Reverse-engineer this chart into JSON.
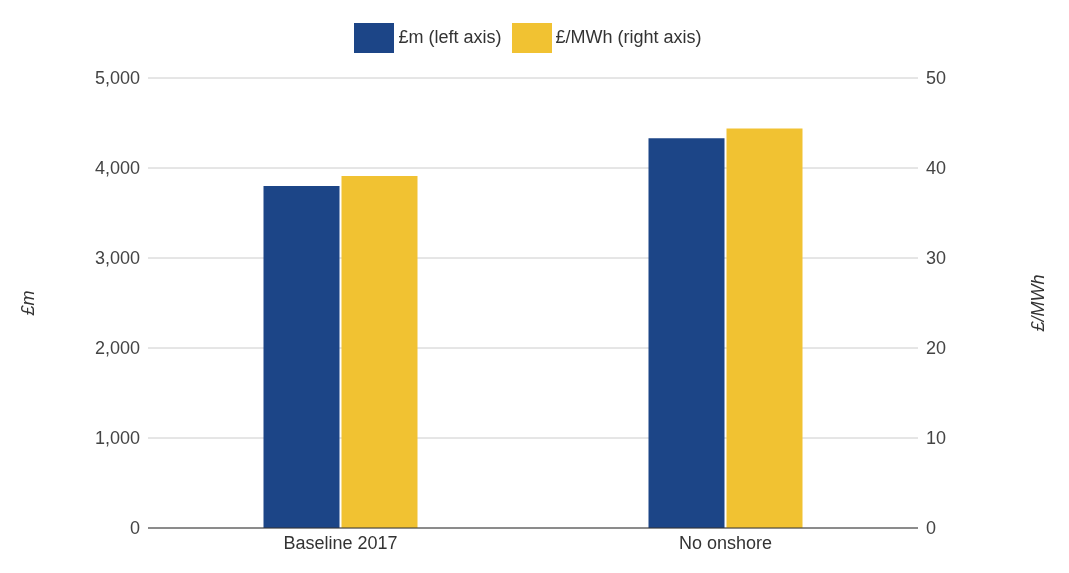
{
  "chart_data": {
    "type": "bar",
    "categories": [
      "Baseline 2017",
      "No onshore"
    ],
    "series": [
      {
        "name": "£m (left axis)",
        "color": "#1c4587",
        "values": [
          3800,
          4330
        ]
      },
      {
        "name": "£/MWh (right axis)",
        "color": "#f1c232",
        "values": [
          39.1,
          44.4
        ],
        "axis": "y2"
      }
    ],
    "ylabel": "£m",
    "y2label": "£/MWh",
    "ylim": [
      0,
      5000
    ],
    "yticks": [
      {
        "value": 0,
        "label": "0"
      },
      {
        "value": 1000,
        "label": "1,000"
      },
      {
        "value": 2000,
        "label": "2,000"
      },
      {
        "value": 3000,
        "label": "3,000"
      },
      {
        "value": 4000,
        "label": "4,000"
      },
      {
        "value": 5000,
        "label": "5,000"
      }
    ],
    "y2lim": [
      0,
      50
    ],
    "y2ticks": [
      0,
      10,
      20,
      30,
      40,
      50
    ],
    "grid": "y",
    "legend": "top"
  }
}
